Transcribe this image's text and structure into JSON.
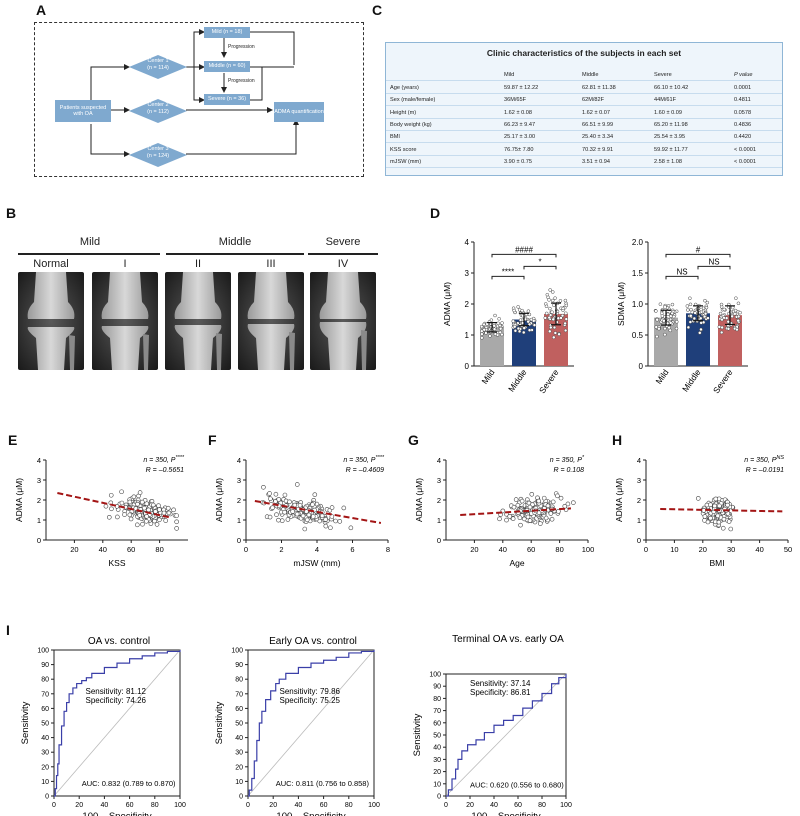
{
  "panels": {
    "A": "A",
    "B": "B",
    "C": "C",
    "D": "D",
    "E": "E",
    "F": "F",
    "G": "G",
    "H": "H",
    "I": "I"
  },
  "flowchart": {
    "patients": "Patients suspected with OA",
    "center1": "Center 1",
    "center1_n": "(n = 114)",
    "center2": "Center 2",
    "center2_n": "(n = 112)",
    "center3": "Center 3",
    "center3_n": "(n = 124)",
    "mild": "Mild (n = 18)",
    "middle": "Middle (n = 60)",
    "severe": "Severe (n = 36)",
    "progression1": "Progression",
    "progression2": "Progression",
    "adma": "ADMA quantification"
  },
  "table": {
    "title": "Clinic characteristics of the subjects in each set",
    "headers": [
      "",
      "Mild",
      "Middle",
      "Severe",
      "P value"
    ],
    "rows": [
      [
        "Age (years)",
        "59.87 ± 12.22",
        "62.81 ± 11.38",
        "66.10 ± 10.42",
        "0.0001"
      ],
      [
        "Sex (male/female)",
        "36M/65F",
        "62M/82F",
        "44M/61F",
        "0.4811"
      ],
      [
        "Height (m)",
        "1.62 ± 0.08",
        "1.62 ± 0.07",
        "1.60 ± 0.09",
        "0.0578"
      ],
      [
        "Body weight (kg)",
        "66.23 ± 9.47",
        "66.51 ± 9.99",
        "65.20 ± 11.98",
        "0.4836"
      ],
      [
        "BMI",
        "25.17 ± 3.00",
        "25.40 ± 3.34",
        "25.54 ± 3.95",
        "0.4420"
      ],
      [
        "KSS score",
        "76.75± 7.80",
        "70.32 ± 9.91",
        "59.92 ± 11.77",
        "< 0.0001"
      ],
      [
        "mJSW (mm)",
        "3.90 ± 0.75",
        "3.51 ± 0.94",
        "2.58 ± 1.08",
        "< 0.0001"
      ]
    ]
  },
  "xray": {
    "groups": [
      "Mild",
      "Middle",
      "Severe"
    ],
    "grades": [
      "Normal",
      "I",
      "II",
      "III",
      "IV"
    ]
  },
  "chart_data": [
    {
      "id": "D-ADMA",
      "type": "bar",
      "categories": [
        "Mild",
        "Middle",
        "Severe"
      ],
      "values": [
        1.25,
        1.5,
        1.68
      ],
      "errors": [
        0.15,
        0.2,
        0.35
      ],
      "colors": [
        "#a9a9a9",
        "#1f3f7a",
        "#c0605f"
      ],
      "ylabel": "ADMA (μM)",
      "ylim": [
        0,
        4
      ],
      "yticks": [
        "0",
        "1",
        "2",
        "3",
        "4"
      ],
      "sig": [
        "####",
        "****",
        "*"
      ]
    },
    {
      "id": "D-SDMA",
      "type": "bar",
      "categories": [
        "Mild",
        "Middle",
        "Severe"
      ],
      "values": [
        0.78,
        0.85,
        0.82
      ],
      "errors": [
        0.12,
        0.12,
        0.15
      ],
      "colors": [
        "#a9a9a9",
        "#1f3f7a",
        "#c0605f"
      ],
      "ylabel": "SDMA (μM)",
      "ylim": [
        0,
        2.0
      ],
      "yticks": [
        "0",
        "0.5",
        "1.0",
        "1.5",
        "2.0"
      ],
      "sig": [
        "#",
        "NS",
        "NS"
      ]
    },
    {
      "id": "E",
      "type": "scatter",
      "xlabel": "KSS",
      "ylabel": "ADMA (μM)",
      "xlim": [
        0,
        100
      ],
      "ylim": [
        0,
        4
      ],
      "xticks": [
        "20",
        "40",
        "60",
        "80"
      ],
      "yticks": [
        "0",
        "1",
        "2",
        "3",
        "4"
      ],
      "stat_n": "n = 350, P",
      "stat_sup": "****",
      "stat_r": "R = –0.5651",
      "fit": [
        [
          8,
          2.35
        ],
        [
          88,
          1.12
        ]
      ],
      "xcenter": 70,
      "xspread": 14,
      "ycenter": 1.45,
      "yspread": 0.45,
      "slope": -0.0154,
      "seed": 11
    },
    {
      "id": "F",
      "type": "scatter",
      "xlabel": "mJSW (mm)",
      "ylabel": "ADMA (μM)",
      "xlim": [
        0,
        8
      ],
      "ylim": [
        0,
        4
      ],
      "xticks": [
        "0",
        "2",
        "4",
        "6",
        "8"
      ],
      "yticks": [
        "0",
        "1",
        "2",
        "3",
        "4"
      ],
      "stat_n": "n = 350, P",
      "stat_sup": "****",
      "stat_r": "R = –0.4609",
      "fit": [
        [
          0.5,
          1.95
        ],
        [
          7.6,
          0.85
        ]
      ],
      "xcenter": 3.2,
      "xspread": 1.5,
      "ycenter": 1.45,
      "yspread": 0.45,
      "slope": -0.155,
      "seed": 23
    },
    {
      "id": "G",
      "type": "scatter",
      "xlabel": "Age",
      "ylabel": "ADMA (μM)",
      "xlim": [
        0,
        100
      ],
      "ylim": [
        0,
        4
      ],
      "xticks": [
        "20",
        "40",
        "60",
        "80",
        "100"
      ],
      "yticks": [
        "0",
        "1",
        "2",
        "3",
        "4"
      ],
      "stat_n": "n = 350, P",
      "stat_sup": "*",
      "stat_r": "R = 0.108",
      "fit": [
        [
          10,
          1.25
        ],
        [
          88,
          1.58
        ]
      ],
      "xcenter": 62,
      "xspread": 13,
      "ycenter": 1.45,
      "yspread": 0.45,
      "slope": 0.0042,
      "seed": 37
    },
    {
      "id": "H",
      "type": "scatter",
      "xlabel": "BMI",
      "ylabel": "ADMA (μM)",
      "xlim": [
        0,
        50
      ],
      "ylim": [
        0,
        4
      ],
      "xticks": [
        "0",
        "10",
        "20",
        "30",
        "40",
        "50"
      ],
      "yticks": [
        "0",
        "1",
        "2",
        "3",
        "4"
      ],
      "stat_n": "n = 350, P",
      "stat_sup": "NS",
      "stat_r": "R = –0.0191",
      "fit": [
        [
          5,
          1.55
        ],
        [
          48,
          1.43
        ]
      ],
      "xcenter": 25,
      "xspread": 3.5,
      "ycenter": 1.45,
      "yspread": 0.45,
      "slope": -0.003,
      "seed": 51
    },
    {
      "id": "I1",
      "type": "line",
      "title": "OA vs. control",
      "xlabel": "100 – Specificity",
      "ylabel": "Sensitivity",
      "xlim": [
        0,
        100
      ],
      "ylim": [
        0,
        100
      ],
      "xticks": [
        "0",
        "20",
        "40",
        "60",
        "80",
        "100"
      ],
      "yticks": [
        "0",
        "10",
        "20",
        "30",
        "40",
        "50",
        "60",
        "70",
        "80",
        "90",
        "100"
      ],
      "x": [
        0,
        1,
        2,
        3,
        4,
        6,
        8,
        10,
        12,
        15,
        18,
        22,
        25.7,
        30,
        40,
        50,
        60,
        70,
        80,
        90,
        100
      ],
      "y": [
        0,
        5,
        14,
        22,
        35,
        48,
        58,
        64,
        70,
        74,
        77,
        79,
        81,
        84,
        88,
        91,
        94,
        96,
        98,
        99,
        100
      ],
      "sens": "Sensitivity: 81.12",
      "spec": "Specificity: 74.26",
      "auc": "AUC:  0.832 (0.789 to 0.870)"
    },
    {
      "id": "I2",
      "type": "line",
      "title": "Early OA vs. control",
      "xlabel": "100 – Specificity",
      "ylabel": "Sensitivity",
      "xlim": [
        0,
        100
      ],
      "ylim": [
        0,
        100
      ],
      "xticks": [
        "0",
        "20",
        "40",
        "60",
        "80",
        "100"
      ],
      "yticks": [
        "0",
        "10",
        "20",
        "30",
        "40",
        "50",
        "60",
        "70",
        "80",
        "90",
        "100"
      ],
      "x": [
        0,
        1,
        3,
        5,
        7,
        9,
        11,
        14,
        18,
        22,
        24.8,
        30,
        40,
        50,
        60,
        70,
        80,
        90,
        100
      ],
      "y": [
        0,
        4,
        12,
        24,
        38,
        50,
        58,
        66,
        72,
        77,
        80,
        84,
        88,
        91,
        93,
        95,
        98,
        99,
        100
      ],
      "sens": "Sensitivity: 79.86",
      "spec": "Specificity: 75.25",
      "auc": "AUC:  0.811 (0.756 to 0.858)"
    },
    {
      "id": "I3",
      "type": "line",
      "title": "Terminal OA vs. early OA",
      "xlabel": "100 – Specificity",
      "ylabel": "Sensitivity",
      "xlim": [
        0,
        100
      ],
      "ylim": [
        0,
        100
      ],
      "xticks": [
        "0",
        "20",
        "40",
        "60",
        "80",
        "100"
      ],
      "yticks": [
        "0",
        "10",
        "20",
        "30",
        "40",
        "50",
        "60",
        "70",
        "80",
        "90",
        "100"
      ],
      "x": [
        0,
        2,
        5,
        8,
        10,
        13.2,
        18,
        25,
        32,
        40,
        48,
        56,
        64,
        72,
        80,
        88,
        94,
        100
      ],
      "y": [
        0,
        5,
        14,
        22,
        30,
        37,
        42,
        46,
        52,
        58,
        62,
        66,
        72,
        78,
        84,
        92,
        97,
        100
      ],
      "sens": "Sensitivity: 37.14",
      "spec": "Specificity: 86.81",
      "auc": "AUC:  0.620 (0.556 to 0.680)"
    }
  ]
}
